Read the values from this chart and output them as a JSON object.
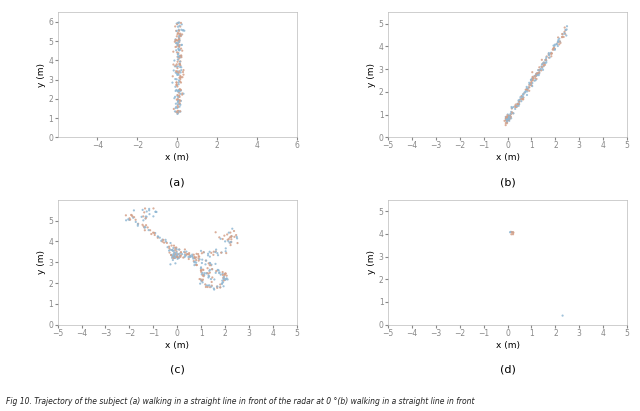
{
  "fig_width": 6.4,
  "fig_height": 4.11,
  "dpi": 100,
  "caption": "Fig 10. Trajectory of the subject (a) walking in a straight line in front of the radar at 0 °(b) walking in a straight line in front",
  "subplots": [
    {
      "label": "(a)",
      "xlim": [
        -6,
        6
      ],
      "ylim": [
        0,
        6.5
      ],
      "xticks": [
        -4,
        -2,
        0,
        2,
        4,
        6
      ],
      "yticks": [
        0,
        1,
        2,
        3,
        4,
        5,
        6
      ],
      "xlabel": "x (m)",
      "ylabel": "y (m)"
    },
    {
      "label": "(b)",
      "xlim": [
        -5,
        5
      ],
      "ylim": [
        0,
        5.5
      ],
      "xticks": [
        -5,
        -4,
        -3,
        -2,
        -1,
        0,
        1,
        2,
        3,
        4,
        5
      ],
      "yticks": [
        0,
        1,
        2,
        3,
        4,
        5
      ],
      "xlabel": "x (m)",
      "ylabel": "y (m)"
    },
    {
      "label": "(c)",
      "xlim": [
        -5,
        5
      ],
      "ylim": [
        0,
        6
      ],
      "xticks": [
        -5,
        -4,
        -3,
        -2,
        -1,
        0,
        1,
        2,
        3,
        4,
        5
      ],
      "yticks": [
        0,
        1,
        2,
        3,
        4,
        5
      ],
      "xlabel": "x (m)",
      "ylabel": "y (m)"
    },
    {
      "label": "(d)",
      "xlim": [
        -5,
        5
      ],
      "ylim": [
        0,
        5.5
      ],
      "xticks": [
        -5,
        -4,
        -3,
        -2,
        -1,
        0,
        1,
        2,
        3,
        4,
        5
      ],
      "yticks": [
        0,
        1,
        2,
        3,
        4,
        5
      ],
      "xlabel": "x (m)",
      "ylabel": "y (m)"
    }
  ],
  "dot_color_1": "#d4a088",
  "dot_color_2": "#90b8d4",
  "dot_size": 2.5,
  "alpha": 0.85,
  "background_color": "#ffffff",
  "spine_color": "#aaaaaa",
  "tick_color": "#888888"
}
